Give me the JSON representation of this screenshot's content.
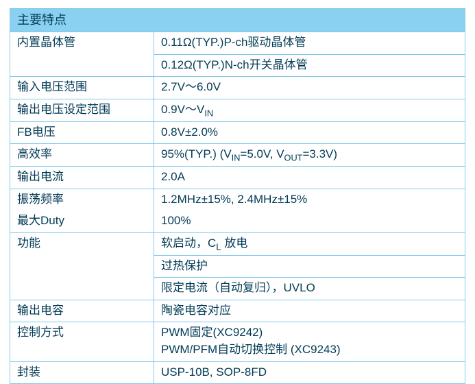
{
  "colors": {
    "border": "#7ec7ec",
    "header_bg": "#8ad0f0",
    "text": "#013a55",
    "background": "#ffffff"
  },
  "title": "主要特点",
  "rows": [
    {
      "label": "内置晶体管",
      "values": [
        "0.11Ω(TYP.)P-ch驱动晶体管",
        "0.12Ω(TYP.)N-ch开关晶体管"
      ]
    },
    {
      "label": "输入电压范围",
      "values": [
        "2.7V～6.0V"
      ]
    },
    {
      "label": "输出电压设定范围",
      "values_html": [
        "0.9V～V<span class='sub'>IN</span>"
      ]
    },
    {
      "label": "FB电压",
      "values": [
        "0.8V±2.0%"
      ]
    },
    {
      "label": "高效率",
      "values_html": [
        "95%(TYP.) (V<span class='sub'>IN</span>=5.0V, V<span class='sub'>OUT</span>=3.3V)"
      ]
    },
    {
      "label": "输出电流",
      "values": [
        "2.0A"
      ]
    },
    {
      "label_pair": [
        "振荡频率",
        "最大Duty"
      ],
      "values_pair": [
        "1.2MHz±15%, 2.4MHz±15%",
        "100%"
      ]
    },
    {
      "label": "功能",
      "values_html": [
        "软启动，C<span class='sub smaller-sub'>L</span> 放电",
        "过热保护",
        "限定电流（自动复归），UVLO"
      ]
    },
    {
      "label": "输出电容",
      "values": [
        "陶瓷电容对应"
      ]
    },
    {
      "label": "控制方式",
      "values_pair_onecell": [
        "PWM固定(XC9242)",
        "PWM/PFM自动切换控制 (XC9243)"
      ]
    },
    {
      "label": "封装",
      "values": [
        "USP-10B, SOP-8FD"
      ]
    }
  ]
}
